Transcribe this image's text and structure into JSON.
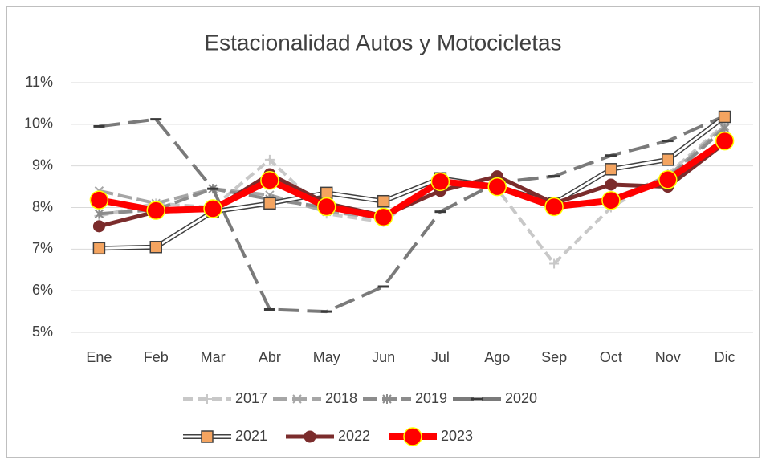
{
  "chart_data": {
    "type": "line",
    "title": "Estacionalidad Autos y Motocicletas",
    "categories": [
      "Ene",
      "Feb",
      "Mar",
      "Abr",
      "May",
      "Jun",
      "Jul",
      "Ago",
      "Sep",
      "Oct",
      "Nov",
      "Dic"
    ],
    "ylim": [
      5,
      11
    ],
    "yticks": [
      {
        "value": 5,
        "label": "5%"
      },
      {
        "value": 6,
        "label": "6%"
      },
      {
        "value": 7,
        "label": "7%"
      },
      {
        "value": 8,
        "label": "8%"
      },
      {
        "value": 9,
        "label": "9%"
      },
      {
        "value": 10,
        "label": "10%"
      },
      {
        "value": 11,
        "label": "11%"
      }
    ],
    "grid": true,
    "legend": "bottom",
    "series": [
      {
        "name": "2017",
        "color": "#c8c8c8",
        "marker": "plus",
        "dash": "12 6",
        "values": [
          7.8,
          8.1,
          8.0,
          9.15,
          7.85,
          7.65,
          8.7,
          8.45,
          6.65,
          8.0,
          8.8,
          10.0
        ]
      },
      {
        "name": "2018",
        "color": "#a6a6a6",
        "marker": "cross",
        "dash": "18 6",
        "values": [
          8.4,
          8.1,
          8.45,
          8.3,
          7.9,
          7.75,
          8.65,
          8.5,
          8.05,
          8.2,
          8.75,
          9.95
        ]
      },
      {
        "name": "2019",
        "color": "#8c8c8c",
        "marker": "star",
        "dash": "18 6",
        "values": [
          7.85,
          7.95,
          8.45,
          8.2,
          8.0,
          7.8,
          8.6,
          8.5,
          8.05,
          8.2,
          8.7,
          9.9
        ]
      },
      {
        "name": "2020",
        "color": "#7a7a7a",
        "marker": "dash",
        "dash": "26 10",
        "values": [
          9.95,
          10.12,
          8.45,
          5.55,
          5.5,
          6.1,
          7.9,
          8.6,
          8.75,
          9.25,
          9.6,
          10.2
        ]
      },
      {
        "name": "2021",
        "color": "#ffffff",
        "marker": "square",
        "dash": "",
        "values": [
          7.02,
          7.05,
          7.9,
          8.1,
          8.35,
          8.15,
          8.7,
          8.5,
          8.1,
          8.92,
          9.15,
          10.18
        ]
      },
      {
        "name": "2022",
        "color": "#7b2c2c",
        "marker": "circle",
        "dash": "",
        "values": [
          7.55,
          7.9,
          7.95,
          8.8,
          8.1,
          7.8,
          8.4,
          8.75,
          8.1,
          8.55,
          8.5,
          9.55
        ]
      },
      {
        "name": "2023",
        "color": "#ff0000",
        "marker": "bigcircle",
        "dash": "",
        "values": [
          8.18,
          7.93,
          7.97,
          8.65,
          8.02,
          7.77,
          8.62,
          8.5,
          8.02,
          8.17,
          8.67,
          9.6
        ]
      }
    ]
  }
}
